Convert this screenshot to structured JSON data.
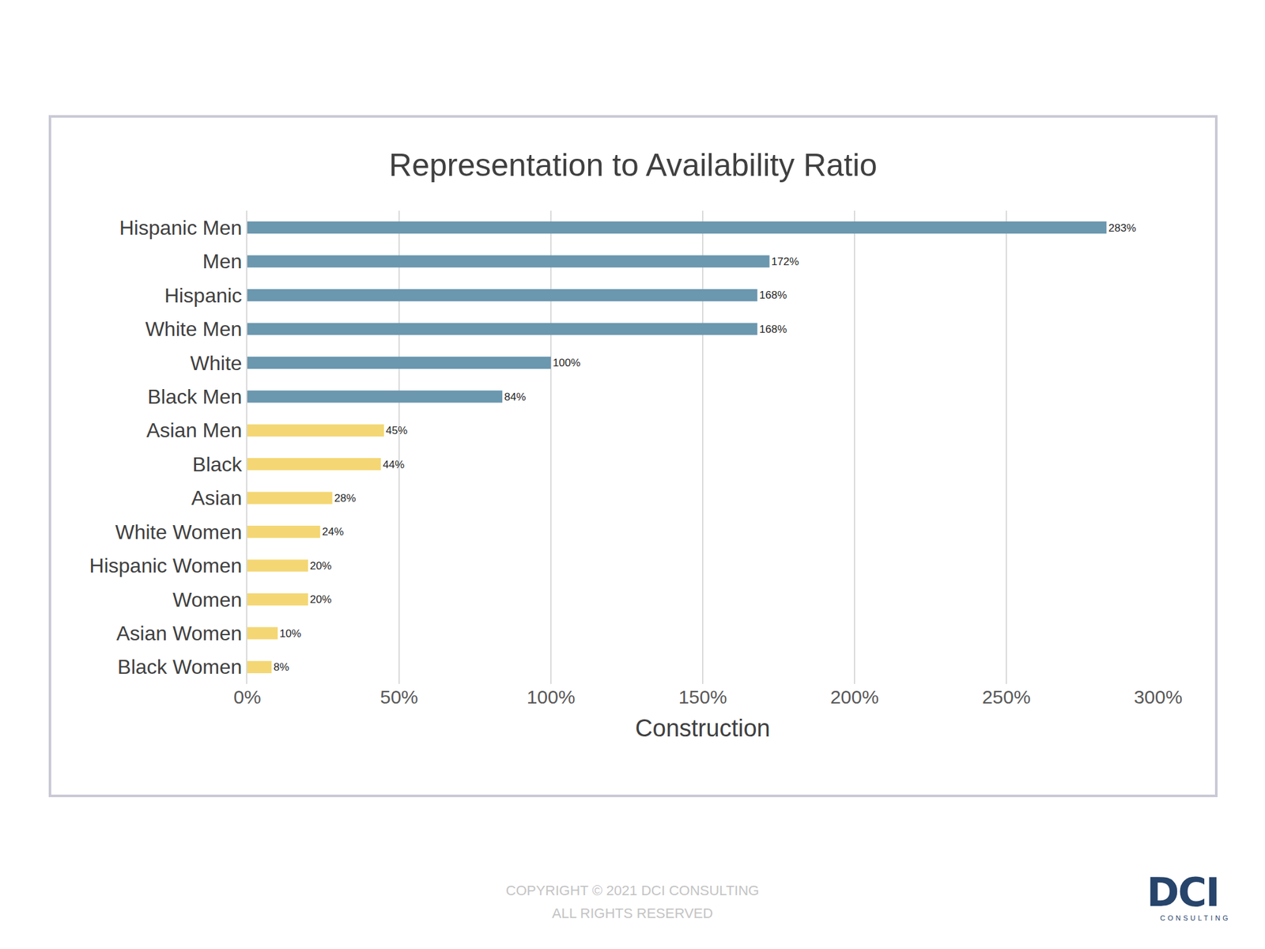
{
  "chart_data": {
    "type": "bar",
    "orientation": "horizontal",
    "title": "Representation to Availability Ratio",
    "x_label": "Construction",
    "categories": [
      "Hispanic Men",
      "Men",
      "Hispanic",
      "White Men",
      "White",
      "Black Men",
      "Asian Men",
      "Black",
      "Asian",
      "White Women",
      "Hispanic Women",
      "Women",
      "Asian Women",
      "Black Women"
    ],
    "values": [
      283,
      172,
      168,
      168,
      100,
      84,
      45,
      44,
      28,
      24,
      20,
      20,
      10,
      8
    ],
    "value_labels": [
      "283%",
      "172%",
      "168%",
      "168%",
      "100%",
      "84%",
      "45%",
      "44%",
      "28%",
      "24%",
      "20%",
      "20%",
      "10%",
      "8%"
    ],
    "colors": [
      "#6b97af",
      "#6b97af",
      "#6b97af",
      "#6b97af",
      "#6b97af",
      "#6b97af",
      "#f4d774",
      "#f4d774",
      "#f4d774",
      "#f4d774",
      "#f4d774",
      "#f4d774",
      "#f4d774",
      "#f4d774"
    ],
    "xlim": [
      0,
      300
    ],
    "xticks": [
      {
        "value": 0,
        "label": "0%"
      },
      {
        "value": 50,
        "label": "50%"
      },
      {
        "value": 100,
        "label": "100%"
      },
      {
        "value": 150,
        "label": "150%"
      },
      {
        "value": 200,
        "label": "200%"
      },
      {
        "value": 250,
        "label": "250%"
      },
      {
        "value": 300,
        "label": "300%"
      }
    ],
    "grid": true,
    "data_labels": true
  },
  "footer": [
    "COPYRIGHT © 2021 DCI CONSULTING",
    "ALL RIGHTS RESERVED"
  ],
  "logo": {
    "text": "DCI",
    "subtext": "CONSULTING"
  }
}
